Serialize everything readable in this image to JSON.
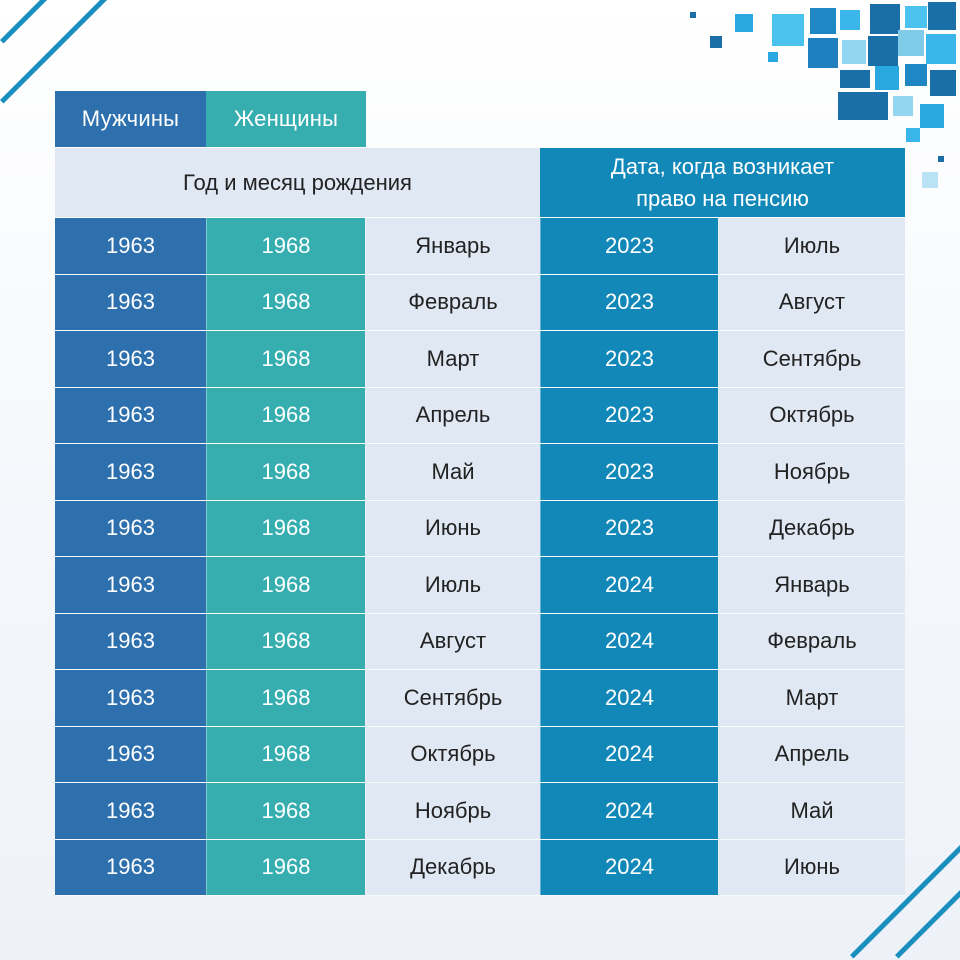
{
  "legend": {
    "men": "Мужчины",
    "women": "Женщины"
  },
  "header": {
    "birth": "Год и месяц рождения",
    "pension_line1": "Дата, когда возникает",
    "pension_line2": "право на пенсию"
  },
  "colors": {
    "men": "#2e70ad",
    "women": "#36aeb0",
    "pension": "#1288b8",
    "light": "#dfe8f3"
  },
  "rows": [
    {
      "men": "1963",
      "women": "1968",
      "birth_month": "Январь",
      "pension_year": "2023",
      "pension_month": "Июль"
    },
    {
      "men": "1963",
      "women": "1968",
      "birth_month": "Февраль",
      "pension_year": "2023",
      "pension_month": "Август"
    },
    {
      "men": "1963",
      "women": "1968",
      "birth_month": "Март",
      "pension_year": "2023",
      "pension_month": "Сентябрь"
    },
    {
      "men": "1963",
      "women": "1968",
      "birth_month": "Апрель",
      "pension_year": "2023",
      "pension_month": "Октябрь"
    },
    {
      "men": "1963",
      "women": "1968",
      "birth_month": "Май",
      "pension_year": "2023",
      "pension_month": "Ноябрь"
    },
    {
      "men": "1963",
      "women": "1968",
      "birth_month": "Июнь",
      "pension_year": "2023",
      "pension_month": "Декабрь"
    },
    {
      "men": "1963",
      "women": "1968",
      "birth_month": "Июль",
      "pension_year": "2024",
      "pension_month": "Январь"
    },
    {
      "men": "1963",
      "women": "1968",
      "birth_month": "Август",
      "pension_year": "2024",
      "pension_month": "Февраль"
    },
    {
      "men": "1963",
      "women": "1968",
      "birth_month": "Сентябрь",
      "pension_year": "2024",
      "pension_month": "Март"
    },
    {
      "men": "1963",
      "women": "1968",
      "birth_month": "Октябрь",
      "pension_year": "2024",
      "pension_month": "Апрель"
    },
    {
      "men": "1963",
      "women": "1968",
      "birth_month": "Ноябрь",
      "pension_year": "2024",
      "pension_month": "Май"
    },
    {
      "men": "1963",
      "women": "1968",
      "birth_month": "Декабрь",
      "pension_year": "2024",
      "pension_month": "Июнь"
    }
  ]
}
